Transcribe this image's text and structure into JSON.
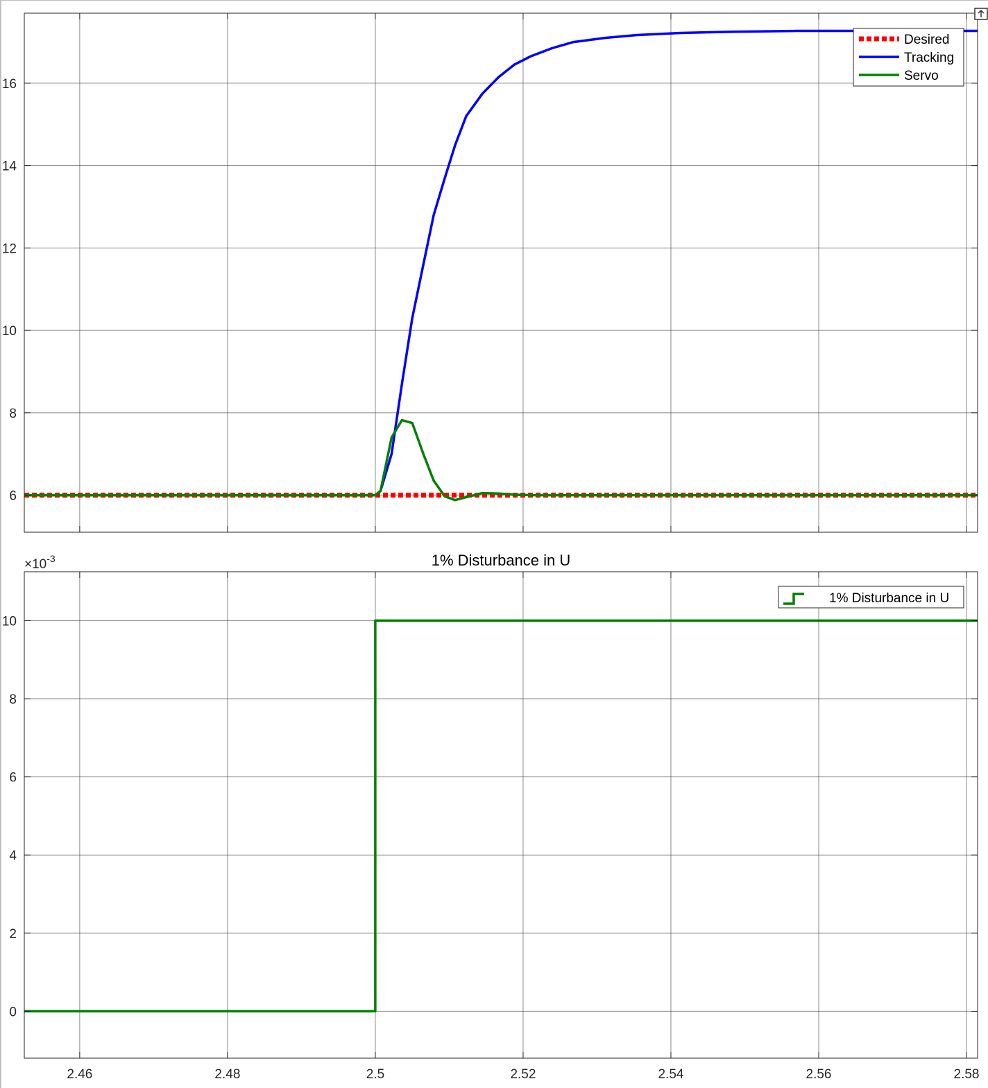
{
  "colors": {
    "desired": "#ff0000",
    "tracking": "#0000ff",
    "servo": "#008000",
    "disturbance": "#008000",
    "grid": "#262626",
    "axes_bg": "#ffffff"
  },
  "icons": {
    "toolbar": "export-icon"
  },
  "chart_data": [
    {
      "type": "line",
      "title": "",
      "xlabel": "",
      "ylabel": "",
      "xlim": [
        2.4525,
        2.5815
      ],
      "ylim": [
        5.1,
        17.7
      ],
      "grid": true,
      "legend_position": "top-right",
      "xticks": [
        2.46,
        2.48,
        2.5,
        2.52,
        2.54,
        2.56,
        2.58
      ],
      "yticks": [
        6,
        8,
        10,
        12,
        14,
        16
      ],
      "ytick_labels": [
        "6",
        "8",
        "10",
        "12",
        "14",
        "16"
      ],
      "series": [
        {
          "name": "Desired",
          "style": "dotted",
          "x": [
            2.4525,
            2.5815
          ],
          "y": [
            6.0,
            6.0
          ]
        },
        {
          "name": "Tracking",
          "style": "solid",
          "x": [
            2.4525,
            2.5,
            2.5007,
            2.5022,
            2.5036,
            2.505,
            2.5065,
            2.5079,
            2.5094,
            2.5108,
            2.5123,
            2.5145,
            2.5167,
            2.5188,
            2.521,
            2.5239,
            2.5268,
            2.5311,
            2.5354,
            2.5413,
            2.5485,
            2.5571,
            2.5815
          ],
          "y": [
            6.0,
            6.0,
            6.1,
            7.0,
            8.7,
            10.3,
            11.6,
            12.8,
            13.7,
            14.5,
            15.2,
            15.75,
            16.15,
            16.45,
            16.65,
            16.85,
            17.0,
            17.1,
            17.17,
            17.22,
            17.25,
            17.27,
            17.27
          ]
        },
        {
          "name": "Servo",
          "style": "solid",
          "x": [
            2.4525,
            2.5,
            2.5007,
            2.5022,
            2.5036,
            2.505,
            2.5065,
            2.5079,
            2.5094,
            2.5108,
            2.5123,
            2.5145,
            2.5167,
            2.5188,
            2.521,
            2.5815
          ],
          "y": [
            6.0,
            6.0,
            6.1,
            7.4,
            7.82,
            7.75,
            7.0,
            6.35,
            5.97,
            5.88,
            5.95,
            6.05,
            6.04,
            6.01,
            6.0,
            6.0
          ]
        }
      ]
    },
    {
      "type": "line",
      "title": "1% Disturbance in U",
      "xlabel": "",
      "ylabel": "",
      "y_exponent_base": "×10",
      "y_exponent_power": "-3",
      "xlim": [
        2.4525,
        2.5815
      ],
      "ylim": [
        -0.0012,
        0.01125
      ],
      "grid": true,
      "legend_position": "top-right",
      "xticks": [
        2.46,
        2.48,
        2.5,
        2.52,
        2.54,
        2.56,
        2.58
      ],
      "xtick_labels": [
        "2.46",
        "2.48",
        "2.5",
        "2.52",
        "2.54",
        "2.56",
        "2.58"
      ],
      "yticks": [
        0,
        0.002,
        0.004,
        0.006,
        0.008,
        0.01
      ],
      "ytick_labels": [
        "0",
        "2",
        "4",
        "6",
        "8",
        "10"
      ],
      "series": [
        {
          "name": "1% Disturbance in U",
          "style": "stairs",
          "x": [
            2.4525,
            2.5,
            2.5,
            2.5815
          ],
          "y": [
            0,
            0,
            0.01,
            0.01
          ]
        }
      ]
    }
  ]
}
